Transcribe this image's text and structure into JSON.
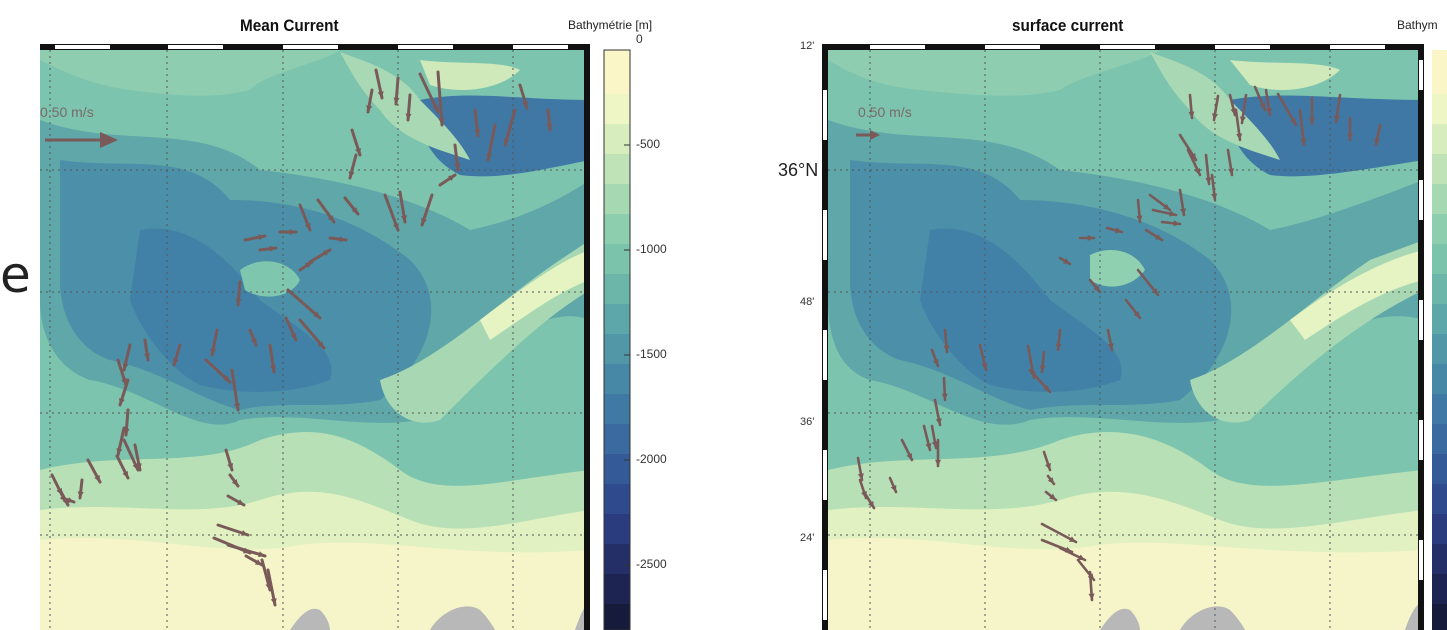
{
  "side_text": "e",
  "left_panel": {
    "title": "Mean Current",
    "colorbar_title": "Bathymétrie [m]",
    "colorbar_ticks": [
      "0",
      "-500",
      "-1000",
      "-1500",
      "-2000",
      "-2500"
    ],
    "scale_label": "0.50 m/s"
  },
  "right_panel": {
    "title": "surface current",
    "colorbar_title": "Bathym",
    "scale_label": "0.50 m/s",
    "lat_labels": [
      "12'",
      "36°N",
      "48'",
      "36'",
      "24'"
    ]
  },
  "colors": {
    "shallow": "#fbf6c8",
    "mid": "#6fbba8",
    "deep": "#3f7ca3",
    "land": "#b8b8b8",
    "arrow": "#7a5a58"
  }
}
